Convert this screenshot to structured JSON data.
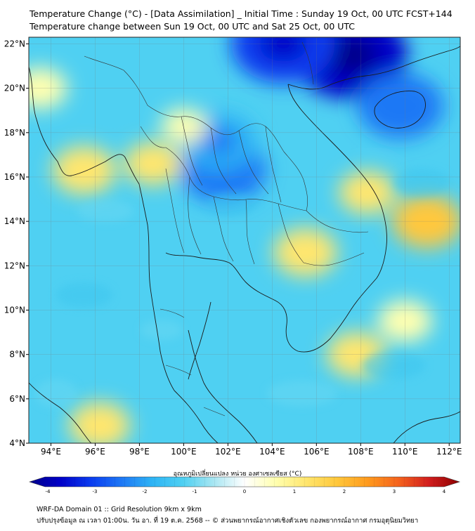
{
  "title_line1": "Temperature Change (°C) - [Data Assimilation] _ Initial Time : Sunday 19 Oct, 00 UTC FCST+144",
  "title_line2": "Temperature change between Sun 19 Oct, 00 UTC and Sat 25 Oct, 00 UTC",
  "map": {
    "lat_labels": [
      "22°N",
      "20°N",
      "18°N",
      "16°N",
      "14°N",
      "12°N",
      "10°N",
      "8°N",
      "6°N",
      "4°N"
    ],
    "lon_labels": [
      "94°E",
      "96°E",
      "98°E",
      "100°E",
      "102°E",
      "104°E",
      "106°E",
      "108°E",
      "110°E",
      "112°E"
    ],
    "lat_values": [
      22,
      20,
      18,
      16,
      14,
      12,
      10,
      8,
      6,
      4
    ],
    "lon_values": [
      94,
      96,
      98,
      100,
      102,
      104,
      106,
      108,
      110,
      112
    ],
    "extent": {
      "lon_min": 93,
      "lon_max": 112.5,
      "lat_min": 4,
      "lat_max": 22.3
    },
    "background_color": "#4fd0f2",
    "anomalies": [
      {
        "label": "cooling-north-vietnam",
        "lon": 107.5,
        "lat": 21.5,
        "value": -3.5
      },
      {
        "label": "cooling-south-china",
        "lon": 104.5,
        "lat": 22.0,
        "value": -3.0
      },
      {
        "label": "cooling-hainan",
        "lon": 109.8,
        "lat": 19.2,
        "value": -2.2
      },
      {
        "label": "cooling-northeast-thailand",
        "lon": 101.8,
        "lat": 16.3,
        "value": -2.2
      },
      {
        "label": "cooling-laos",
        "lon": 101.6,
        "lat": 17.6,
        "value": -1.8
      },
      {
        "label": "warming-myanmar-coast",
        "lon": 95.5,
        "lat": 16.3,
        "value": 1.2
      },
      {
        "label": "warming-andaman",
        "lon": 98.6,
        "lat": 16.6,
        "value": 0.9
      },
      {
        "label": "warming-cambodia",
        "lon": 105.5,
        "lat": 12.6,
        "value": 1.2
      },
      {
        "label": "warming-vietnam-coast",
        "lon": 108.3,
        "lat": 15.3,
        "value": 0.9
      },
      {
        "label": "warming-south-china-sea",
        "lon": 111.0,
        "lat": 14.0,
        "value": 1.5
      },
      {
        "label": "warming-gulf-sea",
        "lon": 107.8,
        "lat": 8.0,
        "value": 1.0
      },
      {
        "label": "warming-sea-east",
        "lon": 110.0,
        "lat": 9.5,
        "value": 0.8
      },
      {
        "label": "warming-andaman-south",
        "lon": 96.2,
        "lat": 4.8,
        "value": 1.1
      },
      {
        "label": "warming-yunnan",
        "lon": 93.5,
        "lat": 20.0,
        "value": 0.8
      },
      {
        "label": "warming-laos-pale",
        "lon": 100.0,
        "lat": 18.3,
        "value": 0.4
      }
    ]
  },
  "colorbar": {
    "title": "อุณหภูมิเปลี่ยนแปลง หน่วย องศาเซลเซียส (°C)",
    "tick_labels": [
      "-4",
      "-3",
      "-2",
      "-1",
      "0",
      "1",
      "2",
      "3",
      "4"
    ],
    "min": -4,
    "max": 4,
    "colors": [
      "#00008a",
      "#0000c8",
      "#0a3cf0",
      "#1e78f5",
      "#2eb4f5",
      "#4fd0f2",
      "#a8e6f2",
      "#ffffff",
      "#ffffb0",
      "#ffe66e",
      "#ffc83c",
      "#ff9b1e",
      "#f5641e",
      "#d21e1e",
      "#8c0000"
    ]
  },
  "footer_line1": "WRF-DA Domain 01 :: Grid Resolution 9km x 9km",
  "footer_line2": "ปรับปรุงข้อมูล ณ เวลา 01:00น. วัน อา. ที่ 19 ต.ค. 2568 -- © ส่วนพยากรณ์อากาศเชิงตัวเลข กองพยากรณ์อากาศ กรมอุตุนิยมวิทยา"
}
